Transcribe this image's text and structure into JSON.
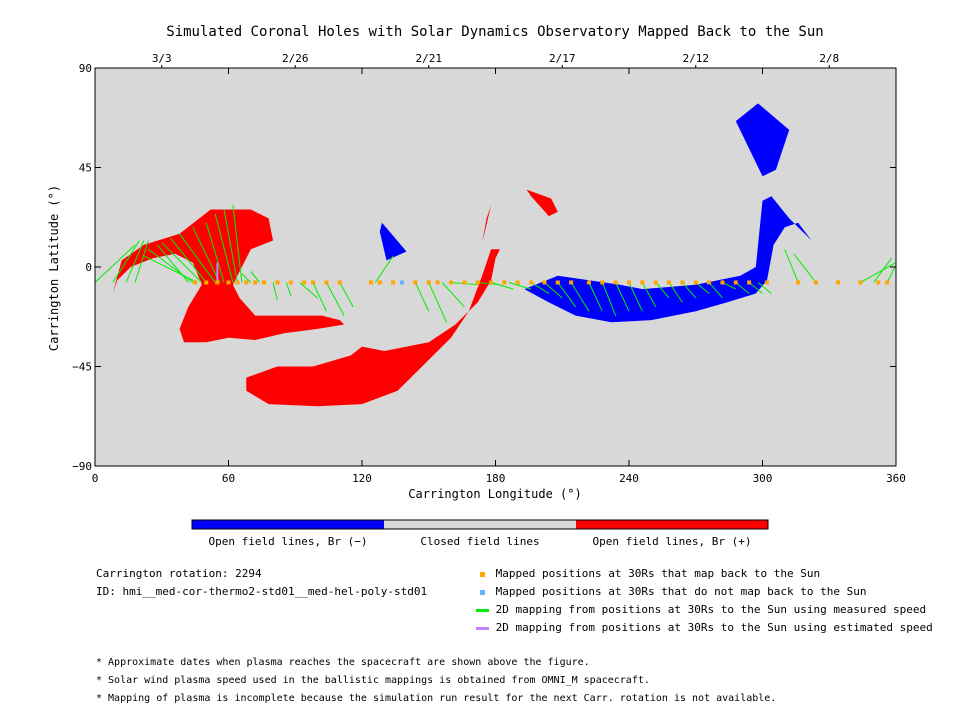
{
  "chart_data": {
    "type": "map",
    "title": "Simulated Coronal Holes with Solar Dynamics Observatory Mapped Back to the Sun",
    "xlabel": "Carrington Longitude (°)",
    "ylabel": "Carrington Latitude (°)",
    "xlim": [
      0,
      360
    ],
    "ylim": [
      -90,
      90
    ],
    "x_ticks": [
      "0",
      "60",
      "120",
      "180",
      "240",
      "300",
      "360"
    ],
    "y_ticks": [
      "90",
      "45",
      "0",
      "-45",
      "-90"
    ],
    "top_dates": [
      {
        "label": "3/3",
        "lon": 30
      },
      {
        "label": "2/26",
        "lon": 90
      },
      {
        "label": "2/21",
        "lon": 150
      },
      {
        "label": "2/17",
        "lon": 210
      },
      {
        "label": "2/12",
        "lon": 270
      },
      {
        "label": "2/8",
        "lon": 330
      }
    ],
    "background_color": "#d8d8d8",
    "colors": {
      "negative": "#0000ff",
      "positive": "#ff0000",
      "closed": "#d8d8d8",
      "mapped": "#ffa500",
      "unmapped": "#66b3ff",
      "measured": "#00ee00",
      "estimated": "#c080ff"
    },
    "regions": [
      {
        "polarity": "positive",
        "points": [
          [
            8,
            -12
          ],
          [
            12,
            3
          ],
          [
            22,
            10
          ],
          [
            38,
            15
          ],
          [
            52,
            26
          ],
          [
            70,
            26
          ],
          [
            78,
            22
          ],
          [
            80,
            12
          ],
          [
            70,
            8
          ],
          [
            62,
            -8
          ],
          [
            65,
            -14
          ],
          [
            72,
            -22
          ],
          [
            88,
            -22
          ],
          [
            102,
            -22
          ],
          [
            110,
            -24
          ],
          [
            112,
            -26
          ],
          [
            100,
            -28
          ],
          [
            85,
            -30
          ],
          [
            72,
            -33
          ],
          [
            60,
            -32
          ],
          [
            50,
            -34
          ],
          [
            40,
            -34
          ],
          [
            38,
            -28
          ],
          [
            42,
            -18
          ],
          [
            48,
            -8
          ],
          [
            44,
            2
          ],
          [
            36,
            6
          ],
          [
            26,
            4
          ],
          [
            16,
            0
          ],
          [
            10,
            -6
          ]
        ]
      },
      {
        "polarity": "positive",
        "points": [
          [
            68,
            -50
          ],
          [
            82,
            -45
          ],
          [
            98,
            -45
          ],
          [
            115,
            -40
          ],
          [
            120,
            -36
          ],
          [
            130,
            -38
          ],
          [
            150,
            -34
          ],
          [
            162,
            -26
          ],
          [
            172,
            -16
          ],
          [
            178,
            -6
          ],
          [
            180,
            4
          ],
          [
            182,
            8
          ],
          [
            178,
            8
          ],
          [
            174,
            -4
          ],
          [
            168,
            -20
          ],
          [
            160,
            -32
          ],
          [
            148,
            -44
          ],
          [
            136,
            -56
          ],
          [
            120,
            -62
          ],
          [
            100,
            -63
          ],
          [
            78,
            -62
          ],
          [
            68,
            -56
          ]
        ]
      },
      {
        "polarity": "positive",
        "points": [
          [
            176,
            22
          ],
          [
            178,
            28
          ],
          [
            175,
            15
          ],
          [
            174,
            11
          ]
        ]
      },
      {
        "polarity": "positive",
        "points": [
          [
            194,
            35
          ],
          [
            205,
            31
          ],
          [
            208,
            25
          ],
          [
            204,
            23
          ],
          [
            196,
            32
          ]
        ]
      },
      {
        "polarity": "negative",
        "points": [
          [
            129,
            20
          ],
          [
            140,
            7
          ],
          [
            131,
            3
          ],
          [
            128,
            16
          ]
        ]
      },
      {
        "polarity": "negative",
        "points": [
          [
            193,
            -10
          ],
          [
            204,
            -16
          ],
          [
            216,
            -22
          ],
          [
            232,
            -25
          ],
          [
            250,
            -24
          ],
          [
            270,
            -20
          ],
          [
            284,
            -16
          ],
          [
            297,
            -12
          ],
          [
            302,
            -6
          ],
          [
            305,
            10
          ],
          [
            310,
            18
          ],
          [
            316,
            20
          ],
          [
            322,
            12
          ],
          [
            312,
            22
          ],
          [
            304,
            32
          ],
          [
            300,
            30
          ],
          [
            297,
            0
          ],
          [
            290,
            -4
          ],
          [
            270,
            -8
          ],
          [
            246,
            -10
          ],
          [
            236,
            -8
          ],
          [
            222,
            -6
          ],
          [
            208,
            -4
          ]
        ]
      },
      {
        "polarity": "negative",
        "points": [
          [
            288,
            66
          ],
          [
            298,
            74
          ],
          [
            312,
            62
          ],
          [
            306,
            44
          ],
          [
            300,
            41
          ]
        ]
      }
    ],
    "mapped_lon": [
      45,
      50,
      55,
      60,
      64,
      68,
      72,
      76,
      82,
      88,
      94,
      98,
      104,
      110,
      124,
      128,
      134,
      144,
      150,
      154,
      160,
      166,
      172,
      178,
      184,
      190,
      196,
      202,
      208,
      214,
      222,
      228,
      234,
      240,
      246,
      252,
      258,
      264,
      270,
      276,
      282,
      288,
      294,
      302,
      316,
      324,
      334,
      344,
      352,
      356
    ],
    "unmapped_lon": [
      138
    ],
    "mapping_lat": -7,
    "measured_lines": [
      [
        0,
        -7,
        18,
        10
      ],
      [
        8,
        -7,
        20,
        12
      ],
      [
        14,
        -7,
        22,
        12
      ],
      [
        18,
        -7,
        24,
        12
      ],
      [
        42,
        -7,
        28,
        10
      ],
      [
        44,
        -7,
        24,
        8
      ],
      [
        46,
        -7,
        22,
        5
      ],
      [
        48,
        -7,
        30,
        11
      ],
      [
        50,
        -7,
        34,
        13
      ],
      [
        54,
        -7,
        38,
        15
      ],
      [
        56,
        -7,
        44,
        18
      ],
      [
        58,
        -7,
        50,
        20
      ],
      [
        62,
        -7,
        54,
        24
      ],
      [
        64,
        -7,
        58,
        26
      ],
      [
        66,
        -7,
        62,
        28
      ],
      [
        70,
        -7,
        66,
        -3
      ],
      [
        74,
        -7,
        70,
        -2
      ],
      [
        80,
        -7,
        82,
        -15
      ],
      [
        86,
        -7,
        88,
        -13
      ],
      [
        92,
        -7,
        100,
        -14
      ],
      [
        98,
        -7,
        104,
        -20
      ],
      [
        104,
        -7,
        112,
        -22
      ],
      [
        110,
        -7,
        116,
        -18
      ],
      [
        126,
        -7,
        134,
        5
      ],
      [
        144,
        -7,
        150,
        -20
      ],
      [
        150,
        -7,
        158,
        -25
      ],
      [
        156,
        -7,
        166,
        -18
      ],
      [
        160,
        -7,
        172,
        -8
      ],
      [
        172,
        -7,
        182,
        -8
      ],
      [
        178,
        -7,
        188,
        -10
      ],
      [
        186,
        -7,
        196,
        -10
      ],
      [
        196,
        -7,
        204,
        -12
      ],
      [
        202,
        -7,
        210,
        -14
      ],
      [
        208,
        -7,
        216,
        -18
      ],
      [
        214,
        -7,
        222,
        -20
      ],
      [
        222,
        -7,
        228,
        -20
      ],
      [
        228,
        -7,
        234,
        -22
      ],
      [
        234,
        -7,
        240,
        -20
      ],
      [
        240,
        -7,
        246,
        -20
      ],
      [
        246,
        -7,
        252,
        -18
      ],
      [
        252,
        -7,
        258,
        -14
      ],
      [
        258,
        -7,
        264,
        -16
      ],
      [
        264,
        -7,
        270,
        -14
      ],
      [
        270,
        -7,
        276,
        -12
      ],
      [
        276,
        -7,
        282,
        -14
      ],
      [
        282,
        -7,
        288,
        -10
      ],
      [
        288,
        -7,
        294,
        -12
      ],
      [
        294,
        -7,
        300,
        -12
      ],
      [
        298,
        -7,
        304,
        -12
      ],
      [
        316,
        -7,
        310,
        8
      ],
      [
        324,
        -7,
        314,
        6
      ],
      [
        344,
        -7,
        360,
        2
      ],
      [
        350,
        -7,
        358,
        4
      ],
      [
        356,
        -7,
        360,
        1
      ]
    ],
    "estimated_lines": [
      [
        55,
        -7,
        55,
        2
      ]
    ],
    "colorbar": [
      {
        "label": "Open field lines, Br (−)",
        "color": "#0000ff"
      },
      {
        "label": "Closed field lines",
        "color": "#d8d8d8"
      },
      {
        "label": "Open field lines, Br (+)",
        "color": "#ff0000"
      }
    ]
  },
  "info": {
    "rotation": "Carrington rotation: 2294",
    "id": "ID: hmi__med-cor-thermo2-std01__med-hel-poly-std01"
  },
  "legend": [
    {
      "type": "square",
      "color": "#ffa500",
      "label": "Mapped positions at 30Rs that map back to the Sun"
    },
    {
      "type": "square",
      "color": "#66b3ff",
      "label": "Mapped positions at 30Rs that do not map back to the Sun"
    },
    {
      "type": "line",
      "color": "#00ee00",
      "label": "2D mapping from positions at 30Rs to the Sun using measured speed"
    },
    {
      "type": "line",
      "color": "#c080ff",
      "label": "2D mapping from positions at 30Rs to the Sun using estimated speed"
    }
  ],
  "notes": [
    "* Approximate dates when plasma reaches the spacecraft are shown above the figure.",
    "* Solar wind plasma speed used in the ballistic mappings is obtained from OMNI_M spacecraft.",
    "* Mapping of plasma is incomplete because the simulation run result for the next Carr. rotation is not available."
  ]
}
